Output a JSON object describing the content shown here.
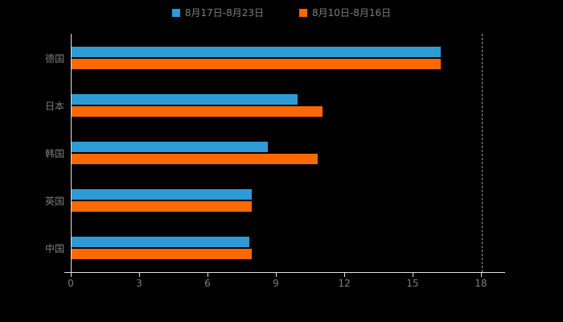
{
  "chart_data": {
    "type": "bar",
    "orientation": "horizontal",
    "title": "",
    "categories": [
      "德国",
      "日本",
      "韩国",
      "英国",
      "中国"
    ],
    "series": [
      {
        "name": "8月17日-8月23日",
        "color": "#2e9bd6",
        "values": [
          16.2,
          9.9,
          8.6,
          7.9,
          7.8
        ]
      },
      {
        "name": "8月10日-8月16日",
        "color": "#fb6a02",
        "values": [
          16.2,
          11.0,
          10.8,
          7.9,
          7.9
        ]
      }
    ],
    "xlim": [
      0,
      18
    ],
    "xticks": [
      "0",
      "3",
      "6",
      "9",
      "12",
      "15",
      "18"
    ],
    "xtick_values": [
      0,
      3,
      6,
      9,
      12,
      15,
      18
    ],
    "legend_position": "top",
    "grid": "dashed vertical line at x max only",
    "background_color": "#000000",
    "axis_line_color": "#e0e0e0",
    "label_color": "#7d7d7d"
  }
}
